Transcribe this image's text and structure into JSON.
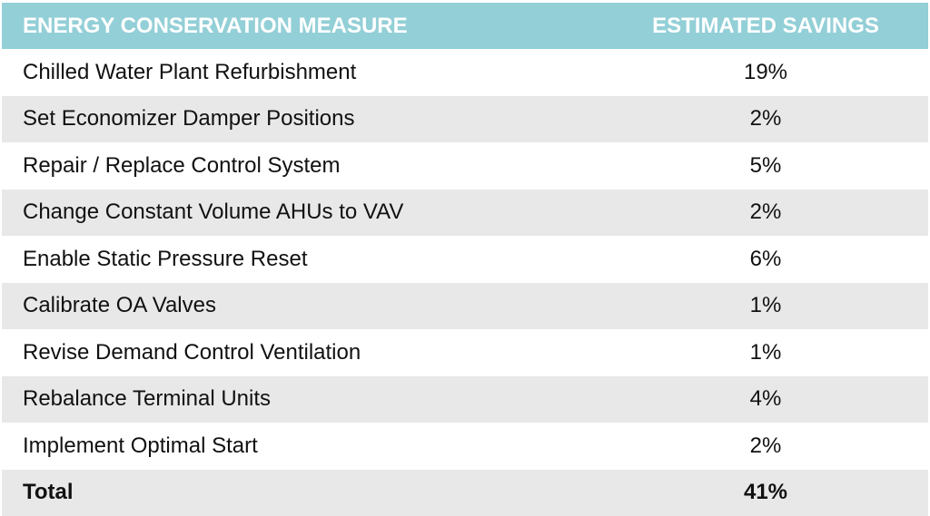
{
  "table": {
    "header": {
      "measure": "ENERGY CONSERVATION MEASURE",
      "savings": "ESTIMATED SAVINGS"
    },
    "rows": [
      {
        "measure": "Chilled Water Plant Refurbishment",
        "savings": "19%"
      },
      {
        "measure": "Set Economizer Damper Positions",
        "savings": "2%"
      },
      {
        "measure": "Repair / Replace Control System",
        "savings": "5%"
      },
      {
        "measure": "Change Constant Volume AHUs to VAV",
        "savings": "2%"
      },
      {
        "measure": "Enable Static Pressure Reset",
        "savings": "6%"
      },
      {
        "measure": "Calibrate OA Valves",
        "savings": "1%"
      },
      {
        "measure": "Revise Demand Control Ventilation",
        "savings": "1%"
      },
      {
        "measure": "Rebalance Terminal Units",
        "savings": "4%"
      },
      {
        "measure": "Implement Optimal Start",
        "savings": "2%"
      }
    ],
    "total": {
      "measure": "Total",
      "savings": "41%"
    }
  },
  "colors": {
    "header_bg": "#93cfd7",
    "header_text": "#ffffff",
    "row_alt_bg": "#e8e8e8",
    "row_bg": "#ffffff"
  }
}
